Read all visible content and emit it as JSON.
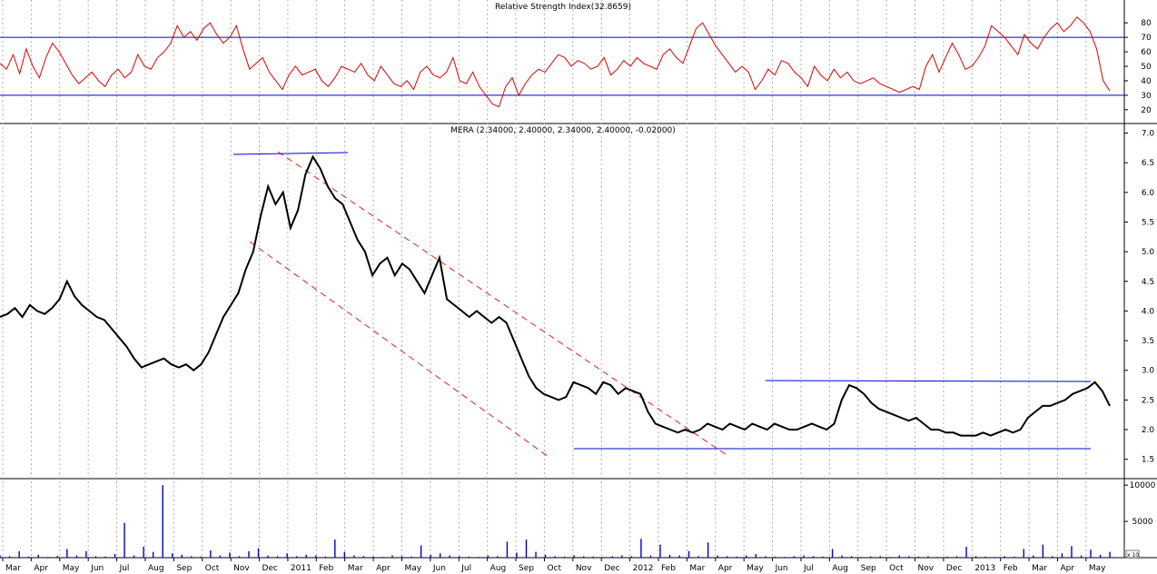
{
  "chart_data": [
    {
      "type": "line",
      "title": "Relative Strength Index(32.8659)",
      "y_ticks": [
        20,
        30,
        40,
        50,
        60,
        70,
        80
      ],
      "ylim": [
        13,
        92
      ],
      "bands": [
        30,
        70
      ],
      "colors": {
        "line": "#dd0000",
        "band": "#0000cc"
      },
      "series": [
        {
          "values": [
            52,
            48,
            58,
            45,
            62,
            50,
            42,
            56,
            66,
            60,
            52,
            44,
            38,
            42,
            46,
            40,
            36,
            44,
            48,
            42,
            46,
            58,
            50,
            48,
            56,
            60,
            66,
            78,
            70,
            74,
            68,
            76,
            80,
            72,
            66,
            70,
            78,
            62,
            48,
            52,
            56,
            46,
            40,
            34,
            44,
            50,
            44,
            46,
            48,
            40,
            36,
            42,
            50,
            48,
            46,
            52,
            44,
            40,
            50,
            44,
            38,
            36,
            40,
            34,
            46,
            50,
            44,
            42,
            46,
            56,
            40,
            38,
            46,
            36,
            30,
            24,
            22,
            36,
            42,
            30,
            38,
            44,
            48,
            46,
            52,
            58,
            56,
            50,
            54,
            52,
            48,
            50,
            56,
            44,
            48,
            54,
            50,
            56,
            52,
            50,
            48,
            58,
            62,
            56,
            52,
            64,
            76,
            80,
            72,
            64,
            58,
            52,
            46,
            50,
            46,
            34,
            40,
            48,
            44,
            54,
            52,
            46,
            42,
            36,
            50,
            44,
            40,
            48,
            42,
            46,
            40,
            38,
            40,
            42,
            38,
            36,
            34,
            32,
            34,
            36,
            34,
            50,
            58,
            46,
            56,
            66,
            58,
            48,
            50,
            56,
            64,
            78,
            74,
            70,
            64,
            58,
            72,
            66,
            62,
            70,
            76,
            80,
            74,
            78,
            84,
            80,
            74,
            62,
            40,
            33
          ]
        }
      ]
    },
    {
      "type": "line",
      "title": "MERA (2.34000, 2.40000, 2.34000, 2.40000, -0.02000)",
      "y_ticks": [
        "7.0",
        "6.5",
        "6.0",
        "5.5",
        "5.0",
        "4.5",
        "4.0",
        "3.5",
        "3.0",
        "2.5",
        "2.0",
        "1.5"
      ],
      "ylim": [
        1.25,
        7.1
      ],
      "colors": {
        "price": "#000000",
        "channel": "#dd2222",
        "support": "#0000cc"
      },
      "series": [
        {
          "values": [
            3.9,
            3.95,
            4.05,
            3.9,
            4.1,
            4.0,
            3.95,
            4.05,
            4.2,
            4.5,
            4.25,
            4.1,
            4.0,
            3.9,
            3.85,
            3.7,
            3.55,
            3.4,
            3.2,
            3.05,
            3.1,
            3.15,
            3.2,
            3.1,
            3.05,
            3.1,
            3.0,
            3.1,
            3.3,
            3.6,
            3.9,
            4.1,
            4.3,
            4.7,
            5.0,
            5.6,
            6.1,
            5.8,
            6.0,
            5.4,
            5.7,
            6.3,
            6.6,
            6.4,
            6.1,
            5.9,
            5.8,
            5.5,
            5.2,
            5.0,
            4.6,
            4.8,
            4.9,
            4.6,
            4.8,
            4.7,
            4.5,
            4.3,
            4.6,
            4.9,
            4.2,
            4.1,
            4.0,
            3.9,
            4.0,
            3.9,
            3.8,
            3.9,
            3.8,
            3.5,
            3.2,
            2.9,
            2.7,
            2.6,
            2.55,
            2.5,
            2.55,
            2.8,
            2.75,
            2.7,
            2.6,
            2.8,
            2.75,
            2.6,
            2.7,
            2.65,
            2.6,
            2.3,
            2.1,
            2.05,
            2.0,
            1.95,
            2.0,
            1.95,
            2.0,
            2.1,
            2.05,
            2.0,
            2.1,
            2.05,
            2.0,
            2.1,
            2.05,
            2.0,
            2.1,
            2.05,
            2.0,
            2.0,
            2.05,
            2.1,
            2.05,
            2.0,
            2.1,
            2.5,
            2.75,
            2.7,
            2.6,
            2.45,
            2.35,
            2.3,
            2.25,
            2.2,
            2.15,
            2.2,
            2.1,
            2.0,
            2.0,
            1.95,
            1.95,
            1.9,
            1.9,
            1.9,
            1.95,
            1.9,
            1.95,
            2.0,
            1.95,
            2.0,
            2.2,
            2.3,
            2.4,
            2.4,
            2.45,
            2.5,
            2.6,
            2.65,
            2.7,
            2.8,
            2.65,
            2.4
          ]
        }
      ]
    },
    {
      "type": "bar",
      "y_ticks": [
        "10000",
        "5000"
      ],
      "ylim": [
        0,
        10400
      ],
      "series": [
        {
          "values": [
            300,
            200,
            900,
            150,
            400,
            100,
            250,
            1200,
            300,
            900,
            200,
            150,
            500,
            4800,
            300,
            1500,
            800,
            10000,
            600,
            400,
            200,
            150,
            1000,
            300,
            700,
            200,
            900,
            1300,
            300,
            200,
            600,
            200,
            400,
            300,
            150,
            2500,
            800,
            300,
            200,
            150,
            100,
            300,
            200,
            150,
            1700,
            400,
            600,
            300,
            200,
            150,
            100,
            300,
            200,
            2200,
            700,
            2500,
            800,
            400,
            200,
            150,
            300,
            200,
            150,
            100,
            200,
            300,
            200,
            2600,
            300,
            1800,
            400,
            300,
            900,
            200,
            2100,
            300,
            200,
            150,
            300,
            500,
            200,
            150,
            100,
            200,
            300,
            200,
            150,
            1200,
            300,
            200,
            100,
            150,
            200,
            100,
            300,
            200,
            150,
            200,
            100,
            150,
            200,
            1500,
            200,
            150,
            100,
            200,
            150,
            1200,
            300,
            1800,
            200,
            600,
            1600,
            300,
            1100,
            400,
            800
          ]
        }
      ]
    }
  ],
  "x_axis": {
    "labels": [
      "Mar",
      "Apr",
      "May",
      "Jun",
      "Jul",
      "Aug",
      "Sep",
      "Oct",
      "Nov",
      "Dec",
      "2011",
      "Feb",
      "Mar",
      "Apr",
      "May",
      "Jun",
      "Jul",
      "Aug",
      "Sep",
      "Oct",
      "Nov",
      "Dec",
      "2012",
      "Feb",
      "Mar",
      "Apr",
      "May",
      "Jun",
      "Jul",
      "Aug",
      "Sep",
      "Oct",
      "Nov",
      "Dec",
      "2013",
      "Feb",
      "Mar",
      "Apr",
      "May"
    ],
    "unit_label": "x 10"
  }
}
